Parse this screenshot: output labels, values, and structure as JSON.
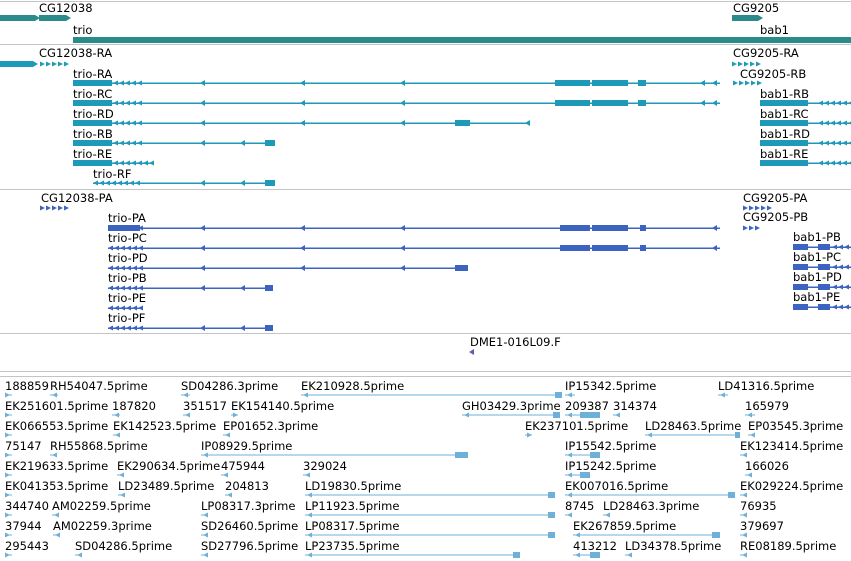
{
  "colors": {
    "gene": "#2b8a8a",
    "transcript": "#1e9ab8",
    "cds": "#3d63c0",
    "est": "#6fb0d8",
    "probe": "#6a5aa8",
    "divider": "#c4c4c4"
  },
  "genes": {
    "cg12038": "CG12038",
    "trio": "trio",
    "cg9205": "CG9205",
    "bab1": "bab1"
  },
  "transcripts": {
    "cg12038_ra": "CG12038-RA",
    "cg9205_ra": "CG9205-RA",
    "cg9205_rb": "CG9205-RB",
    "trio_ra": "trio-RA",
    "trio_rc": "trio-RC",
    "trio_rd": "trio-RD",
    "trio_rb": "trio-RB",
    "trio_re": "trio-RE",
    "trio_rf": "trio-RF",
    "bab1_rb": "bab1-RB",
    "bab1_rc": "bab1-RC",
    "bab1_rd": "bab1-RD",
    "bab1_re": "bab1-RE"
  },
  "proteins": {
    "cg12038_pa": "CG12038-PA",
    "cg9205_pa": "CG9205-PA",
    "cg9205_pb": "CG9205-PB",
    "trio_pa": "trio-PA",
    "trio_pc": "trio-PC",
    "trio_pd": "trio-PD",
    "trio_pb": "trio-PB",
    "trio_pe": "trio-PE",
    "trio_pf": "trio-PF",
    "bab1_pb": "bab1-PB",
    "bab1_pc": "bab1-PC",
    "bab1_pd": "bab1-PD",
    "bab1_pe": "bab1-PE"
  },
  "probe": "DME1-016L09.F",
  "ests": {
    "r1": [
      "188859",
      "RH54047.5prime",
      "SD04286.3prime",
      "EK210928.5prime",
      "IP15342.5prime",
      "LD41316.5prime"
    ],
    "r2": [
      "EK251601.5prime",
      "187820",
      "351517",
      "EK154140.5prime",
      "GH03429.3prime",
      "209387",
      "314374",
      "165979"
    ],
    "r3": [
      "EK066553.5prime",
      "EK142523.5prime",
      "EP01652.3prime",
      "EK237101.5prime",
      "LD28463.5prime",
      "EP03545.3prime"
    ],
    "r4": [
      "75147",
      "RH55868.5prime",
      "IP08929.5prime",
      "IP15542.5prime",
      "EK123414.5prime"
    ],
    "r5": [
      "EK219633.5prime",
      "EK290634.5prime",
      "475944",
      "329024",
      "IP15242.5prime",
      "166026"
    ],
    "r6": [
      "EK041353.5prime",
      "LD23489.5prime",
      "204813",
      "LD19830.5prime",
      "EK007016.5prime",
      "EK029224.5prime"
    ],
    "r7": [
      "344740",
      "AM02259.5prime",
      "LP08317.3prime",
      "LP11923.5prime",
      "8745",
      "LD28463.3prime",
      "76935"
    ],
    "r8": [
      "37944",
      "AM02259.3prime",
      "SD26460.5prime",
      "LP08317.5prime",
      "EK267859.5prime",
      "379697"
    ],
    "r9": [
      "295443",
      "SD04286.5prime",
      "SD27796.5prime",
      "LP23735.5prime",
      "413212",
      "LD34378.5prime",
      "RE08189.5prime"
    ]
  }
}
